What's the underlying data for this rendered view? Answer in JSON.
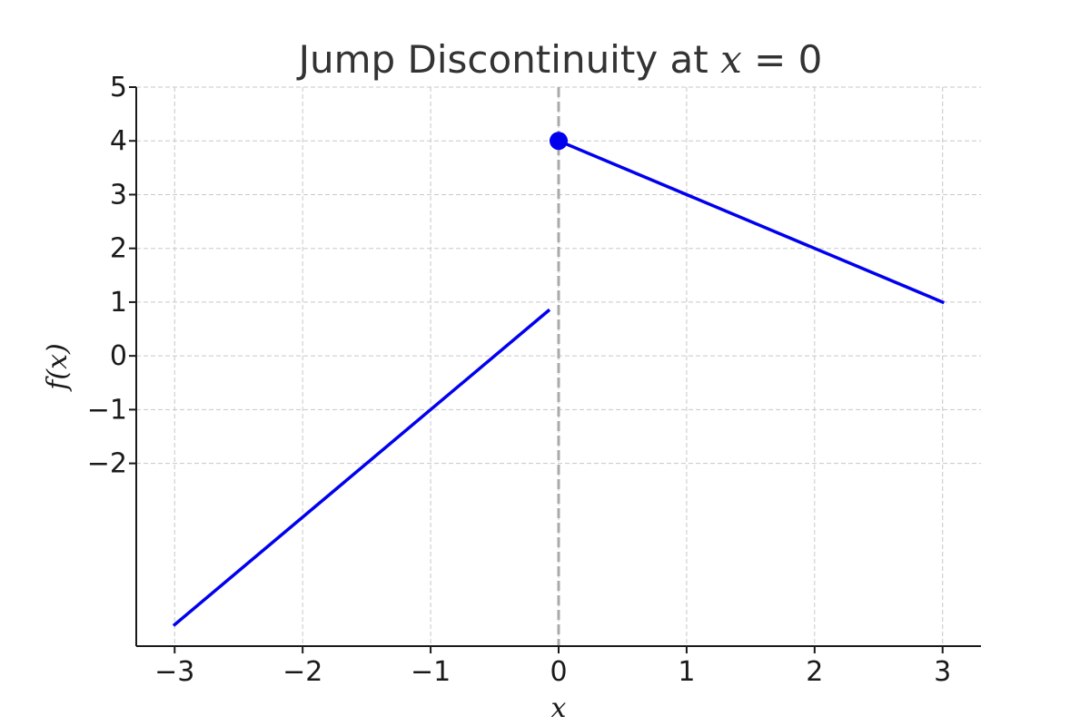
{
  "chart_data": {
    "type": "line",
    "title_prefix": "Jump Discontinuity at ",
    "title_var": "x",
    "title_suffix": " = 0",
    "xlabel": "x",
    "ylabel": "f(x)",
    "xlim": [
      -3.3,
      3.3
    ],
    "ylim": [
      -5.4,
      5
    ],
    "xticks": [
      -3,
      -2,
      -1,
      0,
      1,
      2,
      3
    ],
    "xtick_labels": [
      "−3",
      "−2",
      "−1",
      "0",
      "1",
      "2",
      "3"
    ],
    "yticks": [
      -2,
      -1,
      0,
      1,
      2,
      3,
      4,
      5
    ],
    "ytick_labels": [
      "−2",
      "−1",
      "0",
      "1",
      "2",
      "3",
      "4",
      "5"
    ],
    "grid": true,
    "series": [
      {
        "color": "#0000ee",
        "x": [
          -3,
          -0.08
        ],
        "y": [
          -5,
          0.84
        ]
      },
      {
        "color": "#0000ee",
        "x": [
          0,
          3
        ],
        "y": [
          4,
          1
        ]
      }
    ],
    "points": [
      {
        "x": 0,
        "y": 4,
        "color": "#0000ee"
      }
    ],
    "vertical_lines": [
      {
        "x": 0,
        "color": "#aaaaaa",
        "style": "dashed"
      }
    ]
  }
}
